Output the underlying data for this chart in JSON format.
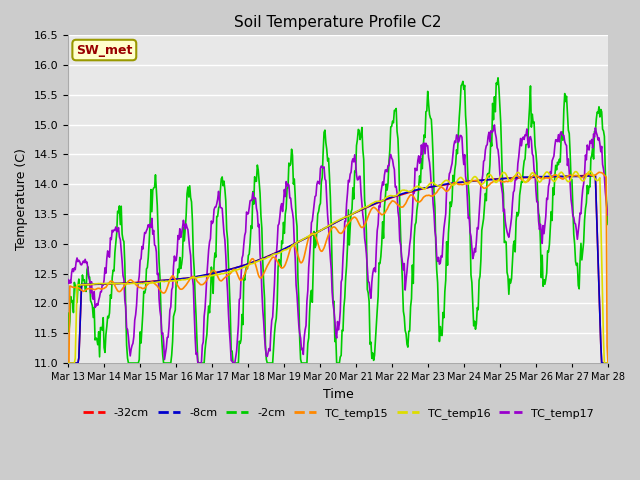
{
  "title": "Soil Temperature Profile C2",
  "xlabel": "Time",
  "ylabel": "Temperature (C)",
  "ylim": [
    11.0,
    16.5
  ],
  "yticks": [
    11.0,
    11.5,
    12.0,
    12.5,
    13.0,
    13.5,
    14.0,
    14.5,
    15.0,
    15.5,
    16.0,
    16.5
  ],
  "bg_color": "#e8e8e8",
  "grid_color": "#ffffff",
  "legend_label": "SW_met",
  "legend_box_facecolor": "#ffffcc",
  "legend_box_edgecolor": "#999900",
  "legend_text_color": "#990000",
  "colors": {
    "neg32cm": "#ff0000",
    "neg8cm": "#0000cc",
    "neg2cm": "#00cc00",
    "TC_temp15": "#ff8800",
    "TC_temp16": "#dddd00",
    "TC_temp17": "#9900cc"
  },
  "line_labels": [
    "-32cm",
    "-8cm",
    "-2cm",
    "TC_temp15",
    "TC_temp16",
    "TC_temp17"
  ],
  "x_tick_labels": [
    "Mar 13",
    "Mar 14",
    "Mar 15",
    "Mar 16",
    "Mar 17",
    "Mar 18",
    "Mar 19",
    "Mar 20",
    "Mar 21",
    "Mar 22",
    "Mar 23",
    "Mar 24",
    "Mar 25",
    "Mar 26",
    "Mar 27",
    "Mar 28"
  ]
}
